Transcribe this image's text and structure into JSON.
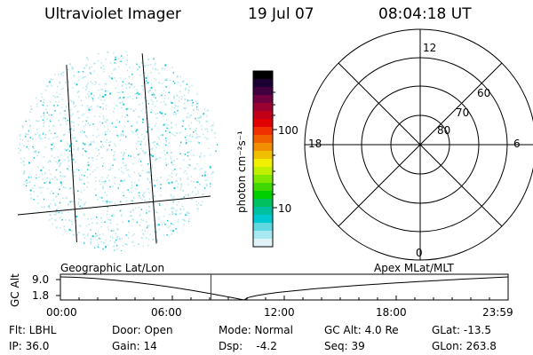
{
  "header": {
    "title": "Ultraviolet Imager",
    "date": "19 Jul 07",
    "time": "08:04:18 UT"
  },
  "colorbar": {
    "unit_label": "photon cm⁻²s⁻¹",
    "ticks": [
      {
        "label": "100",
        "value": 100
      },
      {
        "label": "10",
        "value": 10
      }
    ],
    "colors": [
      "#000000",
      "#1a0033",
      "#400040",
      "#700040",
      "#9a0030",
      "#c00018",
      "#e00000",
      "#f03000",
      "#f06000",
      "#f09000",
      "#f0c000",
      "#f0f000",
      "#c0f000",
      "#80e800",
      "#40d800",
      "#00d000",
      "#00c060",
      "#00c0a0",
      "#00c8d0",
      "#60d8e0",
      "#a8e8f0",
      "#e0f4f8"
    ]
  },
  "image_panel": {
    "label": "Geographic Lat/Lon"
  },
  "polar_panel": {
    "label": "Apex  MLat/MLT",
    "mlt_labels": [
      "12",
      "18",
      "6",
      "0"
    ],
    "mlat_labels": [
      "60",
      "70",
      "80"
    ]
  },
  "timeline": {
    "ylabel": "GC Alt",
    "y_ticks": [
      "9.0",
      "1.8"
    ],
    "x_ticks": [
      "00:00",
      "06:00",
      "12:00",
      "18:00",
      "23:59"
    ],
    "current_time_fraction": 0.3363
  },
  "status": {
    "flt": "Flt: LBHL",
    "ip": "IP: 36.0",
    "door": "Door: Open",
    "gain": "Gain: 14",
    "mode": "Mode: Normal",
    "dsp": "Dsp:    -4.2",
    "gc_alt": "GC Alt: 4.0 Re",
    "seq": "Seq: 39",
    "glat": "GLat: -13.5",
    "glon": "GLon: 263.8"
  },
  "colors": {
    "marker": "#cc0000",
    "noise_cyan": "#20c8d8",
    "noise_light": "#b8e8ee"
  }
}
